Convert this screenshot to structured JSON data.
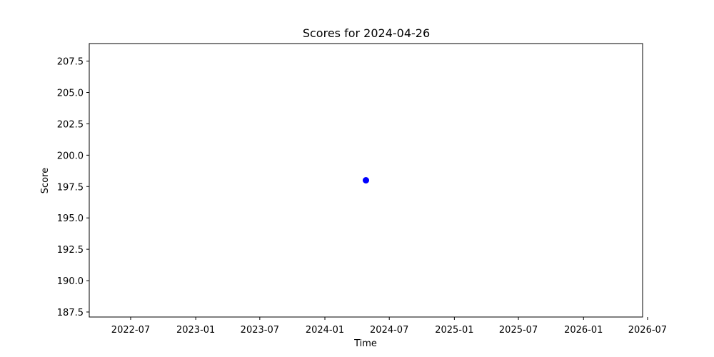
{
  "chart_data": {
    "type": "scatter",
    "title": "Scores for 2024-04-26",
    "xlabel": "Time",
    "ylabel": "Score",
    "x_axis_type": "date",
    "xlim": [
      "2022-03-06",
      "2026-06-17"
    ],
    "ylim": [
      187.1,
      208.9
    ],
    "x_ticks": [
      "2022-07",
      "2023-01",
      "2023-07",
      "2024-01",
      "2024-07",
      "2025-01",
      "2025-07",
      "2026-01",
      "2026-07"
    ],
    "y_ticks": [
      "187.5",
      "190.0",
      "192.5",
      "195.0",
      "197.5",
      "200.0",
      "202.5",
      "205.0",
      "207.5"
    ],
    "grid": false,
    "series": [
      {
        "color": "#0000ff",
        "marker": "circle",
        "points": [
          {
            "x": "2024-04-26",
            "y": 198
          }
        ]
      }
    ]
  }
}
